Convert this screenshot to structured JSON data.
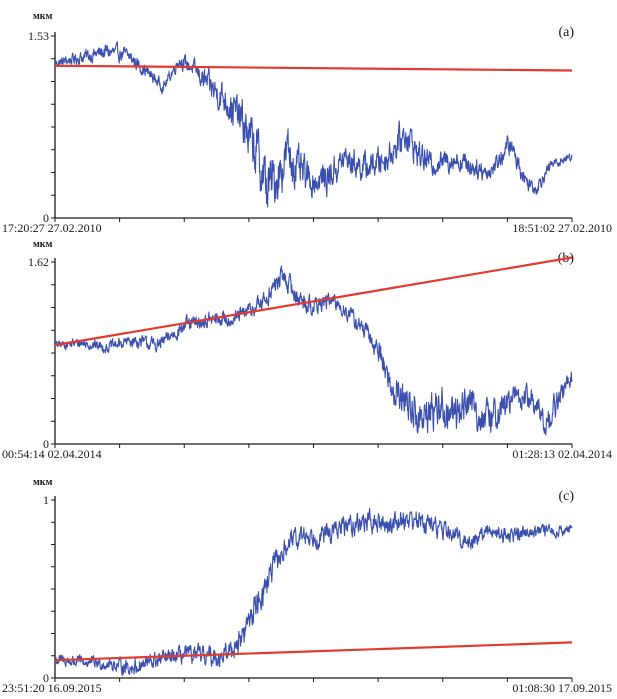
{
  "colors": {
    "signal": "#3a4fae",
    "trend": "#e23a2e",
    "axis": "#1a1a1a"
  },
  "chart_data": [
    {
      "type": "line",
      "tag": "(a)",
      "unit": "мкм",
      "ylim": [
        0,
        1.53
      ],
      "ytick_labels": [
        "1.53",
        "0"
      ],
      "x_start_label": "17:20:27 27.02.2010",
      "x_end_label": "18:51:02 27.02.2010",
      "grid": false,
      "series": [
        {
          "kind": "measured",
          "x": [
            0,
            0.03,
            0.06,
            0.1,
            0.14,
            0.18,
            0.21,
            0.24,
            0.27,
            0.3,
            0.33,
            0.36,
            0.39,
            0.41,
            0.43,
            0.45,
            0.47,
            0.5,
            0.53,
            0.56,
            0.6,
            0.64,
            0.68,
            0.7,
            0.73,
            0.77,
            0.8,
            0.84,
            0.88,
            0.91,
            0.93,
            0.96,
            1.0
          ],
          "y": [
            1.3,
            1.33,
            1.36,
            1.4,
            1.37,
            1.22,
            1.1,
            1.33,
            1.25,
            1.1,
            1.0,
            0.82,
            0.55,
            0.25,
            0.35,
            0.55,
            0.4,
            0.3,
            0.35,
            0.5,
            0.42,
            0.5,
            0.72,
            0.55,
            0.45,
            0.5,
            0.45,
            0.38,
            0.62,
            0.32,
            0.25,
            0.45,
            0.52
          ],
          "amplitude": [
            0.03,
            0.04,
            0.05,
            0.06,
            0.05,
            0.05,
            0.04,
            0.05,
            0.06,
            0.1,
            0.12,
            0.15,
            0.2,
            0.22,
            0.18,
            0.18,
            0.15,
            0.1,
            0.12,
            0.1,
            0.1,
            0.1,
            0.12,
            0.1,
            0.08,
            0.08,
            0.08,
            0.06,
            0.08,
            0.06,
            0.05,
            0.04,
            0.03
          ]
        },
        {
          "kind": "trend",
          "x": [
            0,
            1.0
          ],
          "y": [
            1.28,
            1.24
          ]
        }
      ]
    },
    {
      "type": "line",
      "tag": "(b)",
      "unit": "мкм",
      "ylim": [
        0,
        1.62
      ],
      "ytick_labels": [
        "1.62",
        "0"
      ],
      "x_start_label": "00:54:14 02.04.2014",
      "x_end_label": "01:28:13 02.04.2014",
      "grid": false,
      "series": [
        {
          "kind": "measured",
          "x": [
            0,
            0.05,
            0.1,
            0.15,
            0.2,
            0.25,
            0.3,
            0.35,
            0.4,
            0.44,
            0.47,
            0.5,
            0.53,
            0.56,
            0.6,
            0.63,
            0.65,
            0.68,
            0.71,
            0.74,
            0.77,
            0.8,
            0.83,
            0.86,
            0.89,
            0.92,
            0.95,
            0.97,
            1.0
          ],
          "y": [
            0.88,
            0.9,
            0.86,
            0.92,
            0.88,
            1.05,
            1.1,
            1.12,
            1.25,
            1.5,
            1.3,
            1.22,
            1.28,
            1.2,
            1.0,
            0.8,
            0.5,
            0.38,
            0.2,
            0.35,
            0.25,
            0.4,
            0.2,
            0.3,
            0.42,
            0.4,
            0.18,
            0.35,
            0.62
          ],
          "amplitude": [
            0.03,
            0.04,
            0.04,
            0.05,
            0.05,
            0.06,
            0.06,
            0.06,
            0.07,
            0.08,
            0.08,
            0.07,
            0.06,
            0.06,
            0.07,
            0.09,
            0.12,
            0.14,
            0.16,
            0.15,
            0.15,
            0.14,
            0.13,
            0.12,
            0.1,
            0.1,
            0.1,
            0.1,
            0.07
          ]
        },
        {
          "kind": "trend",
          "x": [
            0,
            1.0
          ],
          "y": [
            0.88,
            1.66
          ]
        }
      ]
    },
    {
      "type": "line",
      "tag": "(c)",
      "unit": "мкм",
      "ylim": [
        0,
        1
      ],
      "ytick_labels": [
        "1",
        "0"
      ],
      "x_start_label": "23:51:20 16.09.2015",
      "x_end_label": "01:08:30 17.09.2015",
      "grid": false,
      "series": [
        {
          "kind": "measured",
          "x": [
            0,
            0.05,
            0.1,
            0.15,
            0.2,
            0.25,
            0.3,
            0.33,
            0.36,
            0.39,
            0.42,
            0.45,
            0.48,
            0.52,
            0.56,
            0.6,
            0.64,
            0.68,
            0.72,
            0.76,
            0.8,
            0.84,
            0.88,
            0.92,
            0.96,
            1.0
          ],
          "y": [
            0.1,
            0.09,
            0.08,
            0.06,
            0.1,
            0.13,
            0.12,
            0.13,
            0.22,
            0.42,
            0.6,
            0.75,
            0.8,
            0.8,
            0.85,
            0.88,
            0.86,
            0.9,
            0.87,
            0.82,
            0.76,
            0.83,
            0.8,
            0.83,
            0.82,
            0.84
          ],
          "amplitude": [
            0.03,
            0.03,
            0.03,
            0.04,
            0.04,
            0.04,
            0.05,
            0.05,
            0.06,
            0.07,
            0.07,
            0.05,
            0.05,
            0.05,
            0.05,
            0.05,
            0.05,
            0.05,
            0.05,
            0.04,
            0.04,
            0.04,
            0.04,
            0.03,
            0.03,
            0.02
          ]
        },
        {
          "kind": "trend",
          "x": [
            0,
            1.0
          ],
          "y": [
            0.1,
            0.2
          ]
        }
      ]
    }
  ]
}
